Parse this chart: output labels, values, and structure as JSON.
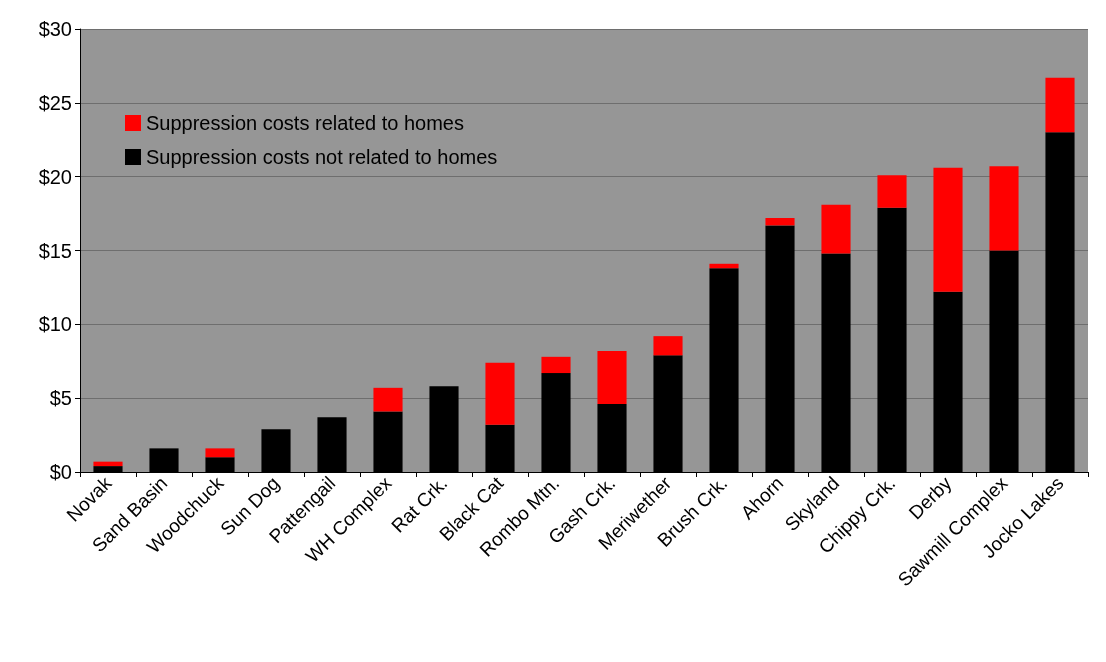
{
  "chart_data": {
    "type": "bar",
    "stacked": true,
    "categories": [
      "Novak",
      "Sand Basin",
      "Woodchuck",
      "Sun Dog",
      "Pattengail",
      "WH Complex",
      "Rat Crk.",
      "Black Cat",
      "Rombo Mtn.",
      "Gash Crk.",
      "Meriwether",
      "Brush Crk.",
      "Ahorn",
      "Skyland",
      "Chippy Crk.",
      "Derby",
      "Sawmill Complex",
      "Jocko Lakes"
    ],
    "series": [
      {
        "name": "Suppression costs not related to homes",
        "color": "#000000",
        "values": [
          0.4,
          1.6,
          1.0,
          2.9,
          3.7,
          4.1,
          5.8,
          3.2,
          6.7,
          4.6,
          7.9,
          13.8,
          16.7,
          14.8,
          17.9,
          12.2,
          15.0,
          23.0
        ]
      },
      {
        "name": "Suppression costs related to homes",
        "color": "#ff0000",
        "values": [
          0.3,
          null,
          0.6,
          null,
          null,
          1.6,
          null,
          4.2,
          1.1,
          3.6,
          1.3,
          0.3,
          0.5,
          3.3,
          2.2,
          8.4,
          5.7,
          3.7
        ]
      }
    ],
    "ylim": [
      0,
      30
    ],
    "yticks": [
      {
        "value": 0,
        "label": "$0"
      },
      {
        "value": 5,
        "label": "$5"
      },
      {
        "value": 10,
        "label": "$10"
      },
      {
        "value": 15,
        "label": "$15"
      },
      {
        "value": 20,
        "label": "$20"
      },
      {
        "value": 25,
        "label": "$25"
      },
      {
        "value": 30,
        "label": "$30"
      }
    ],
    "grid": "y",
    "legend": "top left"
  }
}
